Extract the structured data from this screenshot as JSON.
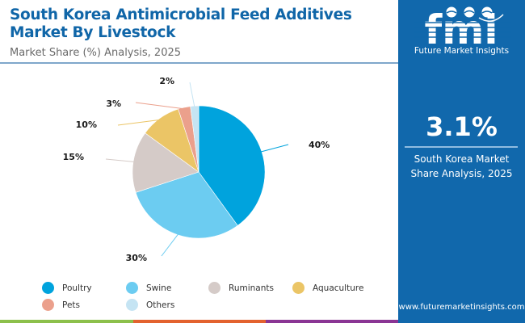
{
  "header": {
    "title": "South Korea Antimicrobial Feed Additives Market By Livestock",
    "subtitle": "Market Share (%) Analysis, 2025"
  },
  "panel": {
    "logo_text": "Future Market Insights",
    "logo_letters": "fmi",
    "stat_value": "3.1%",
    "stat_desc_line1": "South Korea Market",
    "stat_desc_line2": "Share Analysis, 2025",
    "url": "www.futuremarketinsights.com"
  },
  "colors": {
    "brand_blue": "#1168ac",
    "title_blue": "#1066a8",
    "bottom_bar": [
      "#8cc04b",
      "#e3622f",
      "#8a3594"
    ]
  },
  "chart_data": {
    "type": "pie",
    "title": "South Korea Antimicrobial Feed Additives Market By Livestock",
    "subtitle": "Market Share (%) Analysis, 2025",
    "legend_position": "bottom",
    "slices": [
      {
        "label": "Poultry",
        "value": 40,
        "display": "40%",
        "color": "#00a3dd"
      },
      {
        "label": "Swine",
        "value": 30,
        "display": "30%",
        "color": "#6cccf1"
      },
      {
        "label": "Ruminants",
        "value": 15,
        "display": "15%",
        "color": "#d5cbc8"
      },
      {
        "label": "Aquaculture",
        "value": 10,
        "display": "10%",
        "color": "#ebc566"
      },
      {
        "label": "Pets",
        "value": 3,
        "display": "3%",
        "color": "#eba08c"
      },
      {
        "label": "Others",
        "value": 2,
        "display": "2%",
        "color": "#c5e4f3"
      }
    ]
  }
}
